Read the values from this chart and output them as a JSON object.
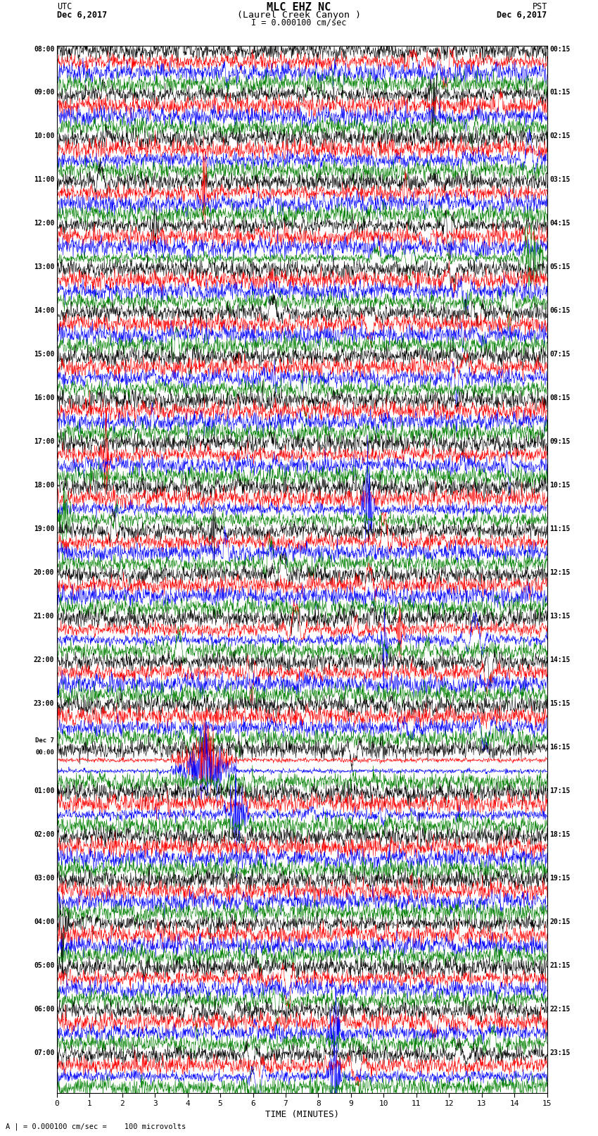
{
  "title_line1": "MLC EHZ NC",
  "title_line2": "(Laurel Creek Canyon )",
  "scale_label": "I = 0.000100 cm/sec",
  "utc_label": "UTC",
  "utc_date": "Dec 6,2017",
  "pst_label": "PST",
  "pst_date": "Dec 6,2017",
  "xlabel": "TIME (MINUTES)",
  "footer": "= 0.000100 cm/sec =    100 microvolts",
  "footer_marker": "A |",
  "left_times": [
    "08:00",
    "09:00",
    "10:00",
    "11:00",
    "12:00",
    "13:00",
    "14:00",
    "15:00",
    "16:00",
    "17:00",
    "18:00",
    "19:00",
    "20:00",
    "21:00",
    "22:00",
    "23:00",
    "Dec 7\n00:00",
    "01:00",
    "02:00",
    "03:00",
    "04:00",
    "05:00",
    "06:00",
    "07:00"
  ],
  "right_times": [
    "00:15",
    "01:15",
    "02:15",
    "03:15",
    "04:15",
    "05:15",
    "06:15",
    "07:15",
    "08:15",
    "09:15",
    "10:15",
    "11:15",
    "12:15",
    "13:15",
    "14:15",
    "15:15",
    "16:15",
    "17:15",
    "18:15",
    "19:15",
    "20:15",
    "21:15",
    "22:15",
    "23:15"
  ],
  "colors": [
    "black",
    "red",
    "blue",
    "green"
  ],
  "n_hours": 24,
  "traces_per_hour": 4,
  "x_min": 0,
  "x_max": 15,
  "bg_color": "white",
  "seed": 12345
}
